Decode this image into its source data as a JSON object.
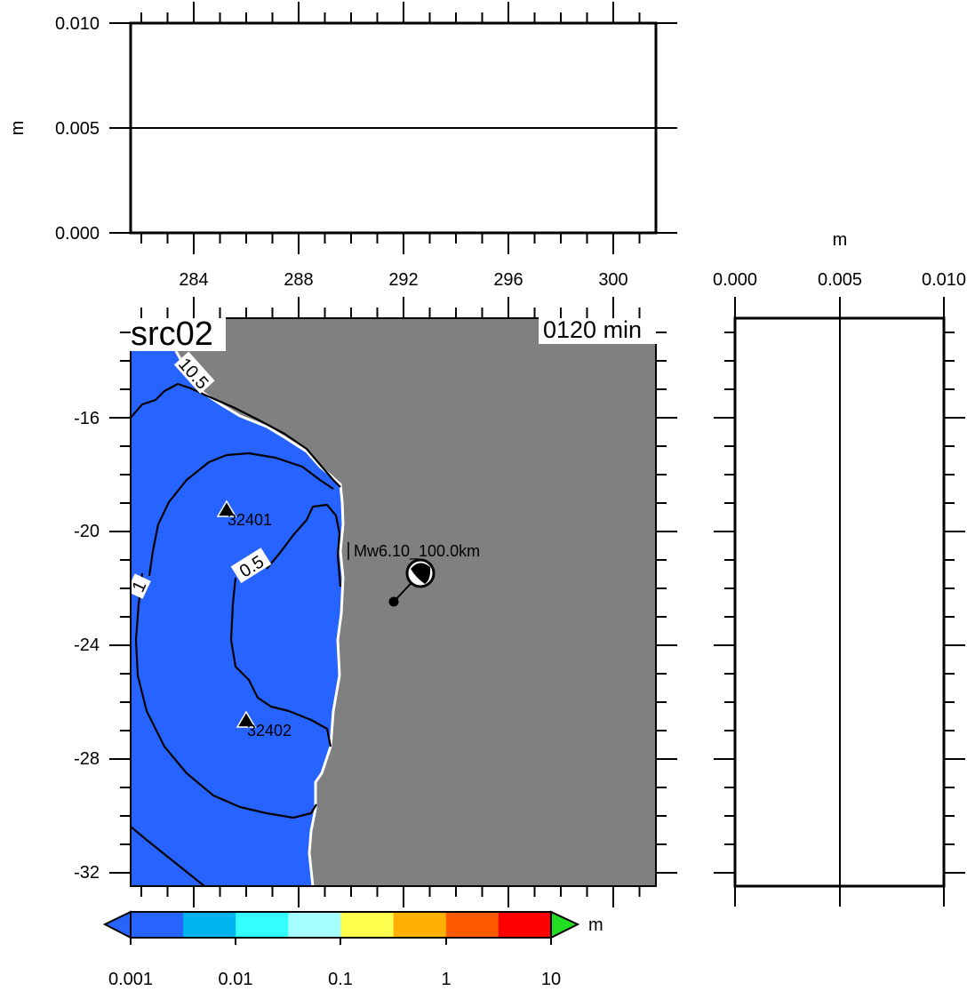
{
  "top_panel": {
    "ylabel": "m",
    "y_ticks": [
      "0.000",
      "0.005",
      "0.010"
    ],
    "x_ticks": [
      "284",
      "288",
      "292",
      "296",
      "300"
    ]
  },
  "side_panel": {
    "xlabel": "m",
    "x_ticks": [
      "0.000",
      "0.005",
      "0.010"
    ]
  },
  "map": {
    "source_label": "src02",
    "time_label": "0120 min",
    "y_ticks": [
      "-16",
      "-20",
      "-24",
      "-28",
      "-32"
    ],
    "contour_labels": [
      "10.5",
      "0.5",
      "1"
    ],
    "stations": [
      {
        "name": "32401",
        "lon": 285.1,
        "lat": -19.3
      },
      {
        "name": "32402",
        "lon": 285.9,
        "lat": -26.8
      }
    ],
    "epicenter": {
      "label": "Mw6.10_100.0km",
      "lon": 291.6,
      "lat": -22.5
    },
    "colors": {
      "ocean": "#2663ff",
      "land": "#808080"
    }
  },
  "colorbar": {
    "unit": "m",
    "ticks": [
      "0.001",
      "0.01",
      "0.1",
      "1",
      "10"
    ],
    "colors": [
      "#2663ff",
      "#00b4f0",
      "#33ffff",
      "#a6ffff",
      "#ffff4d",
      "#ffb000",
      "#ff5a00",
      "#ff0000"
    ],
    "under_color": "#2663ff",
    "over_color": "#22dd22"
  }
}
